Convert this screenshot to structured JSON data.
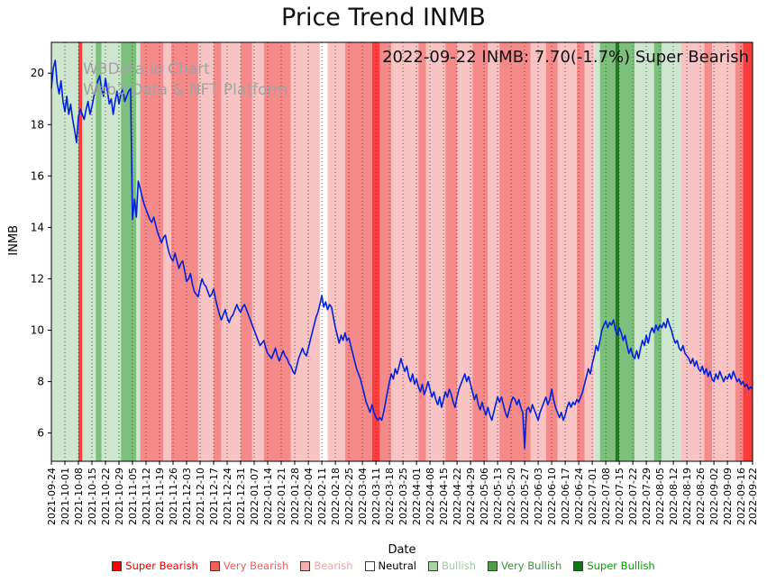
{
  "annotation": {
    "text": "2022-09-22 INMB: 7.70(-1.7%) Super Bearish"
  },
  "watermark": {
    "line1": "W3Data.io Chart",
    "line2": "Web3 Data & NFT Platform"
  },
  "chart_data": {
    "type": "line",
    "title": "Price Trend INMB",
    "xlabel": "Date",
    "ylabel": "INMB",
    "ylim": [
      4.9,
      21.2
    ],
    "yticks": [
      6,
      8,
      10,
      12,
      14,
      16,
      18,
      20
    ],
    "x_unit": "days_since_2021-09-24",
    "x_range_days": [
      0,
      363
    ],
    "x_tick_labels": [
      "2021-09-24",
      "2021-10-01",
      "2021-10-08",
      "2021-10-15",
      "2021-10-22",
      "2021-10-29",
      "2021-11-05",
      "2021-11-12",
      "2021-11-19",
      "2021-11-26",
      "2021-12-03",
      "2021-12-10",
      "2021-12-17",
      "2021-12-24",
      "2021-12-31",
      "2022-01-07",
      "2022-01-14",
      "2022-01-21",
      "2022-01-28",
      "2022-02-04",
      "2022-02-11",
      "2022-02-18",
      "2022-02-25",
      "2022-03-04",
      "2022-03-11",
      "2022-03-18",
      "2022-03-25",
      "2022-04-01",
      "2022-04-08",
      "2022-04-15",
      "2022-04-22",
      "2022-04-29",
      "2022-05-06",
      "2022-05-13",
      "2022-05-20",
      "2022-05-27",
      "2022-06-03",
      "2022-06-10",
      "2022-06-17",
      "2022-06-24",
      "2022-07-01",
      "2022-07-08",
      "2022-07-15",
      "2022-07-22",
      "2022-07-29",
      "2022-08-05",
      "2022-08-12",
      "2022-08-19",
      "2022-08-26",
      "2022-09-02",
      "2022-09-09",
      "2022-09-16",
      "2022-09-22"
    ],
    "last_point": {
      "date": "2022-09-22",
      "value": 7.7,
      "change_pct": -1.7,
      "signal": "Super Bearish"
    },
    "grid": {
      "vertical_dotted": true
    },
    "series": [
      {
        "name": "INMB",
        "color": "#0022dd",
        "values_daily": [
          19.4,
          20.2,
          20.5,
          19.6,
          19.2,
          19.7,
          18.9,
          18.5,
          19.1,
          18.4,
          18.8,
          18.2,
          17.8,
          17.3,
          18.3,
          18.6,
          18.4,
          18.2,
          18.6,
          18.9,
          18.4,
          18.7,
          19.1,
          19.4,
          19.7,
          19.9,
          19.4,
          19.1,
          19.8,
          19.3,
          18.8,
          19.0,
          18.4,
          18.9,
          19.3,
          18.8,
          19.2,
          19.4,
          18.9,
          19.1,
          19.3,
          19.4,
          14.3,
          15.1,
          14.4,
          15.8,
          15.5,
          15.2,
          14.9,
          14.7,
          14.5,
          14.3,
          14.2,
          14.4,
          14.1,
          13.8,
          13.6,
          13.4,
          13.6,
          13.7,
          13.3,
          13.0,
          12.8,
          12.7,
          13.0,
          12.7,
          12.4,
          12.6,
          12.7,
          12.3,
          11.9,
          12.0,
          12.2,
          11.8,
          11.5,
          11.4,
          11.3,
          11.7,
          12.0,
          11.8,
          11.7,
          11.5,
          11.3,
          11.4,
          11.6,
          11.2,
          10.9,
          10.6,
          10.4,
          10.6,
          10.8,
          10.5,
          10.3,
          10.5,
          10.6,
          10.8,
          11.0,
          10.8,
          10.7,
          10.9,
          11.0,
          10.8,
          10.6,
          10.4,
          10.2,
          10.0,
          9.8,
          9.6,
          9.4,
          9.5,
          9.6,
          9.3,
          9.1,
          9.0,
          8.9,
          9.1,
          9.3,
          9.0,
          8.8,
          9.0,
          9.2,
          9.0,
          8.9,
          8.7,
          8.6,
          8.4,
          8.3,
          8.6,
          8.9,
          9.1,
          9.3,
          9.1,
          9.0,
          9.3,
          9.6,
          9.9,
          10.2,
          10.5,
          10.7,
          11.0,
          11.35,
          10.9,
          11.1,
          10.8,
          11.0,
          10.9,
          10.5,
          10.1,
          9.8,
          9.5,
          9.8,
          9.6,
          9.9,
          9.6,
          9.7,
          9.4,
          9.1,
          8.8,
          8.5,
          8.3,
          8.1,
          7.8,
          7.5,
          7.2,
          7.0,
          6.8,
          7.1,
          6.8,
          6.6,
          6.5,
          6.6,
          6.5,
          6.8,
          7.2,
          7.6,
          8.0,
          8.3,
          8.1,
          8.5,
          8.3,
          8.6,
          8.9,
          8.6,
          8.4,
          8.6,
          8.2,
          8.0,
          8.3,
          7.9,
          8.1,
          7.8,
          7.6,
          7.9,
          7.5,
          7.7,
          8.0,
          7.7,
          7.4,
          7.6,
          7.3,
          7.1,
          7.4,
          7.0,
          7.3,
          7.6,
          7.4,
          7.7,
          7.5,
          7.2,
          7.0,
          7.4,
          7.7,
          7.9,
          8.1,
          8.3,
          8.0,
          8.2,
          7.9,
          7.6,
          7.3,
          7.5,
          7.1,
          6.9,
          7.2,
          6.9,
          6.7,
          7.0,
          6.7,
          6.5,
          6.8,
          7.1,
          7.4,
          7.2,
          7.4,
          7.1,
          6.8,
          6.6,
          6.9,
          7.2,
          7.4,
          7.3,
          7.1,
          7.3,
          7.0,
          6.8,
          5.4,
          6.9,
          7.0,
          6.8,
          7.1,
          6.9,
          6.7,
          6.5,
          6.8,
          7.0,
          7.2,
          7.4,
          7.1,
          7.3,
          7.7,
          7.3,
          7.0,
          6.8,
          6.6,
          6.8,
          6.5,
          6.7,
          7.0,
          7.2,
          7.0,
          7.2,
          7.1,
          7.3,
          7.2,
          7.4,
          7.6,
          7.9,
          8.2,
          8.5,
          8.3,
          8.7,
          9.0,
          9.4,
          9.2,
          9.6,
          10.0,
          10.2,
          10.35,
          10.1,
          10.3,
          10.2,
          10.4,
          10.0,
          9.8,
          10.1,
          9.9,
          9.6,
          9.8,
          9.4,
          9.1,
          9.3,
          9.0,
          8.9,
          9.2,
          8.9,
          9.3,
          9.6,
          9.4,
          9.8,
          9.5,
          9.9,
          10.1,
          9.9,
          10.2,
          10.0,
          10.2,
          10.1,
          10.3,
          10.1,
          10.45,
          10.2,
          10.0,
          9.7,
          9.5,
          9.6,
          9.3,
          9.2,
          9.4,
          9.1,
          9.0,
          8.9,
          8.7,
          8.9,
          8.6,
          8.8,
          8.5,
          8.4,
          8.6,
          8.3,
          8.5,
          8.2,
          8.4,
          8.1,
          8.0,
          8.3,
          8.1,
          8.4,
          8.2,
          8.0,
          8.2,
          8.1,
          8.3,
          8.1,
          8.4,
          8.2,
          8.0,
          8.1,
          7.9,
          8.0,
          7.8,
          7.9,
          7.7,
          7.8,
          7.7
        ]
      }
    ],
    "band_colors": {
      "super_bearish": "#fb3d3d",
      "very_bearish": "#f48a8a",
      "bearish": "#f8c3c3",
      "neutral": "#ffffff",
      "bullish": "#cde6cd",
      "very_bullish": "#7dbf7d",
      "super_bullish": "#217a21"
    },
    "sentiment_bands": [
      {
        "start": 0,
        "end": 14,
        "category": "bullish"
      },
      {
        "start": 14,
        "end": 16,
        "category": "super_bearish"
      },
      {
        "start": 16,
        "end": 23,
        "category": "bullish"
      },
      {
        "start": 23,
        "end": 26,
        "category": "very_bullish"
      },
      {
        "start": 26,
        "end": 36,
        "category": "bullish"
      },
      {
        "start": 36,
        "end": 44,
        "category": "very_bullish"
      },
      {
        "start": 44,
        "end": 46,
        "category": "bullish"
      },
      {
        "start": 46,
        "end": 58,
        "category": "very_bearish"
      },
      {
        "start": 58,
        "end": 62,
        "category": "bearish"
      },
      {
        "start": 62,
        "end": 76,
        "category": "very_bearish"
      },
      {
        "start": 76,
        "end": 84,
        "category": "bearish"
      },
      {
        "start": 84,
        "end": 88,
        "category": "very_bearish"
      },
      {
        "start": 88,
        "end": 98,
        "category": "bearish"
      },
      {
        "start": 98,
        "end": 104,
        "category": "very_bearish"
      },
      {
        "start": 104,
        "end": 110,
        "category": "bearish"
      },
      {
        "start": 110,
        "end": 124,
        "category": "very_bearish"
      },
      {
        "start": 124,
        "end": 139,
        "category": "bearish"
      },
      {
        "start": 139,
        "end": 143,
        "category": "neutral"
      },
      {
        "start": 143,
        "end": 152,
        "category": "bearish"
      },
      {
        "start": 152,
        "end": 166,
        "category": "very_bearish"
      },
      {
        "start": 166,
        "end": 170,
        "category": "super_bearish"
      },
      {
        "start": 170,
        "end": 176,
        "category": "very_bearish"
      },
      {
        "start": 176,
        "end": 190,
        "category": "bearish"
      },
      {
        "start": 190,
        "end": 194,
        "category": "very_bearish"
      },
      {
        "start": 194,
        "end": 204,
        "category": "bearish"
      },
      {
        "start": 204,
        "end": 210,
        "category": "very_bearish"
      },
      {
        "start": 210,
        "end": 218,
        "category": "bearish"
      },
      {
        "start": 218,
        "end": 226,
        "category": "very_bearish"
      },
      {
        "start": 226,
        "end": 232,
        "category": "bearish"
      },
      {
        "start": 232,
        "end": 248,
        "category": "very_bearish"
      },
      {
        "start": 248,
        "end": 256,
        "category": "bearish"
      },
      {
        "start": 256,
        "end": 262,
        "category": "very_bearish"
      },
      {
        "start": 262,
        "end": 272,
        "category": "bearish"
      },
      {
        "start": 272,
        "end": 276,
        "category": "very_bearish"
      },
      {
        "start": 276,
        "end": 281,
        "category": "bearish"
      },
      {
        "start": 281,
        "end": 284,
        "category": "bullish"
      },
      {
        "start": 284,
        "end": 292,
        "category": "very_bullish"
      },
      {
        "start": 292,
        "end": 294,
        "category": "super_bullish"
      },
      {
        "start": 294,
        "end": 302,
        "category": "very_bullish"
      },
      {
        "start": 302,
        "end": 312,
        "category": "bullish"
      },
      {
        "start": 312,
        "end": 316,
        "category": "very_bullish"
      },
      {
        "start": 316,
        "end": 326,
        "category": "bullish"
      },
      {
        "start": 326,
        "end": 338,
        "category": "bearish"
      },
      {
        "start": 338,
        "end": 342,
        "category": "very_bearish"
      },
      {
        "start": 342,
        "end": 354,
        "category": "bearish"
      },
      {
        "start": 354,
        "end": 358,
        "category": "very_bearish"
      },
      {
        "start": 358,
        "end": 363,
        "category": "super_bearish"
      }
    ],
    "legend": {
      "position": "bottom",
      "items": [
        {
          "label": "Super Bearish",
          "color": "#ff0000",
          "text_color": "#e60000"
        },
        {
          "label": "Very Bearish",
          "color": "#f15e5e",
          "text_color": "#ee5f5f"
        },
        {
          "label": "Bearish",
          "color": "#f6aeae",
          "text_color": "#f2a3a3"
        },
        {
          "label": "Neutral",
          "color": "#ffffff",
          "text_color": "#000000"
        },
        {
          "label": "Bullish",
          "color": "#a8d5a8",
          "text_color": "#9bcb9b"
        },
        {
          "label": "Very Bullish",
          "color": "#4f9e4f",
          "text_color": "#3f8f3f"
        },
        {
          "label": "Super Bullish",
          "color": "#0a7a0a",
          "text_color": "#0a9a0a"
        }
      ]
    }
  }
}
